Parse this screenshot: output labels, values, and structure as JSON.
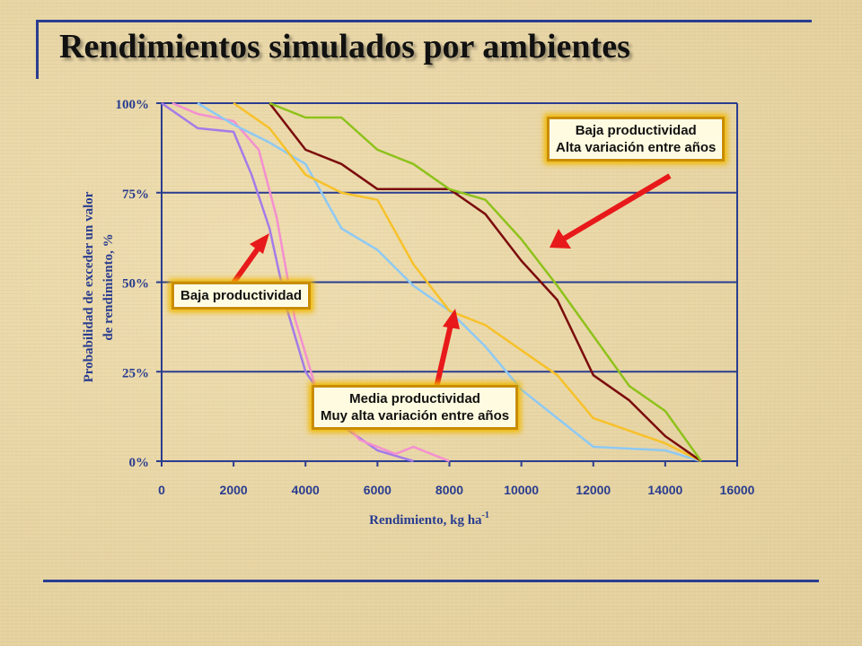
{
  "slide": {
    "title": "Rendimientos simulados por ambientes"
  },
  "callouts": {
    "low": "Baja productividad",
    "low_high_var_1": "Baja productividad",
    "low_high_var_2": "Alta variación entre años",
    "medium_1": "Media productividad",
    "medium_2": "Muy alta variación entre años"
  },
  "colors": {
    "axis": "#2a3d8f",
    "title_rule": "#2a3d8f",
    "arrow": "#e8191a",
    "callout_fill": "#fffbe0",
    "callout_border": "#f1b800"
  },
  "chart_data": {
    "type": "line",
    "xlabel": "Rendimiento, kg ha",
    "xlabel_sup": "-1",
    "ylabel_line1": "Probabilidad de exceder un valor",
    "ylabel_line2": "de rendimiento, %",
    "xlim": [
      0,
      16000
    ],
    "ylim": [
      0,
      100
    ],
    "x_ticks": [
      "0",
      "2000",
      "4000",
      "6000",
      "8000",
      "10000",
      "12000",
      "14000",
      "16000"
    ],
    "y_ticks": [
      "0%",
      "25%",
      "50%",
      "75%",
      "100%"
    ],
    "grid": "horizontal",
    "series": [
      {
        "color": "#a47be8",
        "points": [
          [
            0,
            100
          ],
          [
            1000,
            93
          ],
          [
            2000,
            92
          ],
          [
            2500,
            80
          ],
          [
            3000,
            65
          ],
          [
            3500,
            42
          ],
          [
            4000,
            25
          ],
          [
            5000,
            10
          ],
          [
            6000,
            3
          ],
          [
            7000,
            0
          ]
        ]
      },
      {
        "color": "#f48fd0",
        "points": [
          [
            300,
            100
          ],
          [
            1000,
            97
          ],
          [
            2000,
            95
          ],
          [
            2700,
            87
          ],
          [
            3200,
            68
          ],
          [
            3700,
            40
          ],
          [
            4300,
            20
          ],
          [
            5500,
            6
          ],
          [
            6500,
            2
          ],
          [
            7000,
            4
          ],
          [
            8000,
            0
          ]
        ]
      },
      {
        "color": "#8ec9f4",
        "points": [
          [
            1000,
            100
          ],
          [
            2000,
            94
          ],
          [
            3000,
            89
          ],
          [
            4000,
            83
          ],
          [
            5000,
            65
          ],
          [
            6000,
            59
          ],
          [
            7000,
            49
          ],
          [
            8000,
            42
          ],
          [
            9000,
            32
          ],
          [
            10000,
            20
          ],
          [
            11000,
            12
          ],
          [
            12000,
            4
          ],
          [
            14000,
            3
          ],
          [
            15000,
            0
          ]
        ]
      },
      {
        "color": "#f7c12a",
        "points": [
          [
            2000,
            100
          ],
          [
            3000,
            93
          ],
          [
            4000,
            80
          ],
          [
            5000,
            75
          ],
          [
            6000,
            73
          ],
          [
            7000,
            55
          ],
          [
            8000,
            42
          ],
          [
            9000,
            38
          ],
          [
            10000,
            31
          ],
          [
            11000,
            24
          ],
          [
            12000,
            12
          ],
          [
            14000,
            5
          ],
          [
            15000,
            0
          ]
        ]
      },
      {
        "color": "#7b0c0c",
        "points": [
          [
            3000,
            100
          ],
          [
            4000,
            87
          ],
          [
            5000,
            83
          ],
          [
            6000,
            76
          ],
          [
            7000,
            76
          ],
          [
            8000,
            76
          ],
          [
            9000,
            69
          ],
          [
            10000,
            56
          ],
          [
            11000,
            45
          ],
          [
            12000,
            24
          ],
          [
            13000,
            17
          ],
          [
            14000,
            7
          ],
          [
            15000,
            0
          ]
        ]
      },
      {
        "color": "#8ec21b",
        "points": [
          [
            3000,
            100
          ],
          [
            4000,
            96
          ],
          [
            5000,
            96
          ],
          [
            6000,
            87
          ],
          [
            7000,
            83
          ],
          [
            8000,
            76
          ],
          [
            9000,
            73
          ],
          [
            10000,
            62
          ],
          [
            11000,
            49
          ],
          [
            12000,
            35
          ],
          [
            13000,
            21
          ],
          [
            14000,
            14
          ],
          [
            15000,
            0
          ]
        ]
      }
    ]
  }
}
